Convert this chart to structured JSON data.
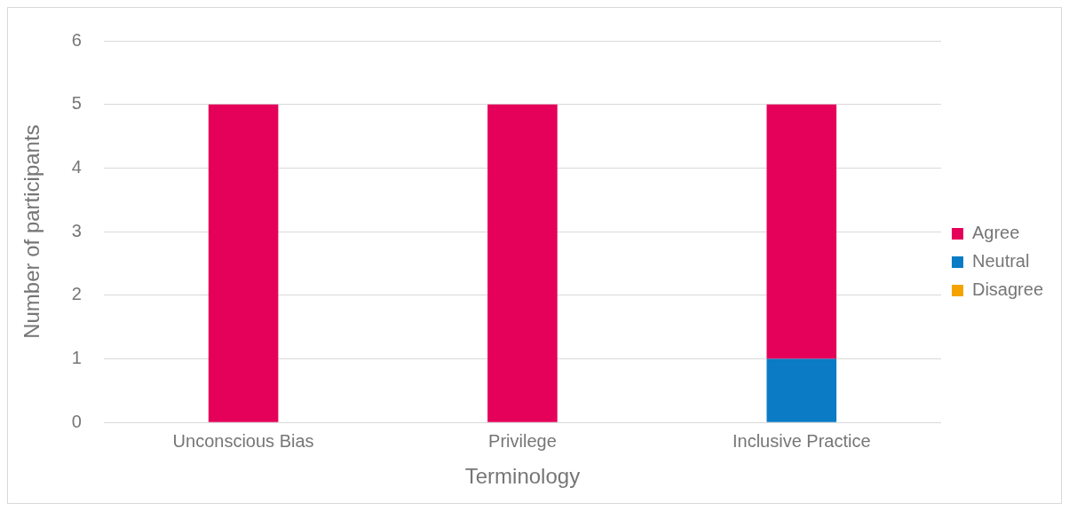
{
  "chart_data": {
    "type": "bar",
    "stacked": true,
    "xlabel": "Terminology",
    "ylabel": "Number of participants",
    "categories": [
      "Unconscious Bias",
      "Privilege",
      "Inclusive Practice"
    ],
    "series": [
      {
        "name": "Disagree",
        "color": "#f5a300",
        "values": [
          0,
          0,
          0
        ]
      },
      {
        "name": "Neutral",
        "color": "#0a7bc4",
        "values": [
          0,
          0,
          1
        ]
      },
      {
        "name": "Agree",
        "color": "#e5005a",
        "values": [
          5,
          5,
          4
        ]
      }
    ],
    "ylim": [
      0,
      6
    ],
    "yticks": [
      0,
      1,
      2,
      3,
      4,
      5,
      6
    ],
    "grid": "y",
    "legend": "right"
  }
}
